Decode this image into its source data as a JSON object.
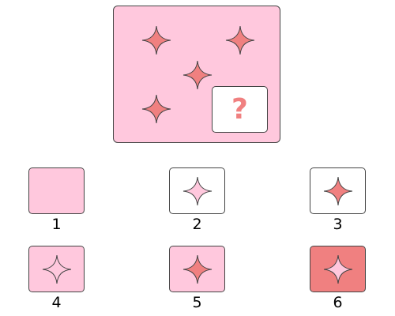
{
  "colors": {
    "light_pink": "#ffc8dd",
    "coral": "#f08080",
    "white": "#ffffff",
    "outline": "#444444"
  },
  "puzzle": {
    "panel_color": "light_pink",
    "stars": [
      {
        "name": "star-top-left",
        "fill": "coral"
      },
      {
        "name": "star-top-right",
        "fill": "coral"
      },
      {
        "name": "star-center",
        "fill": "coral"
      },
      {
        "name": "star-bottom-left",
        "fill": "coral"
      }
    ],
    "missing": {
      "label": "?",
      "icon": "question-mark-icon"
    }
  },
  "options": [
    {
      "number": "1",
      "background": "light_pink",
      "star": "none"
    },
    {
      "number": "2",
      "background": "white",
      "star": "light_pink"
    },
    {
      "number": "3",
      "background": "white",
      "star": "coral"
    },
    {
      "number": "4",
      "background": "light_pink",
      "star": "light_pink"
    },
    {
      "number": "5",
      "background": "light_pink",
      "star": "coral"
    },
    {
      "number": "6",
      "background": "coral",
      "star": "light_pink"
    }
  ]
}
